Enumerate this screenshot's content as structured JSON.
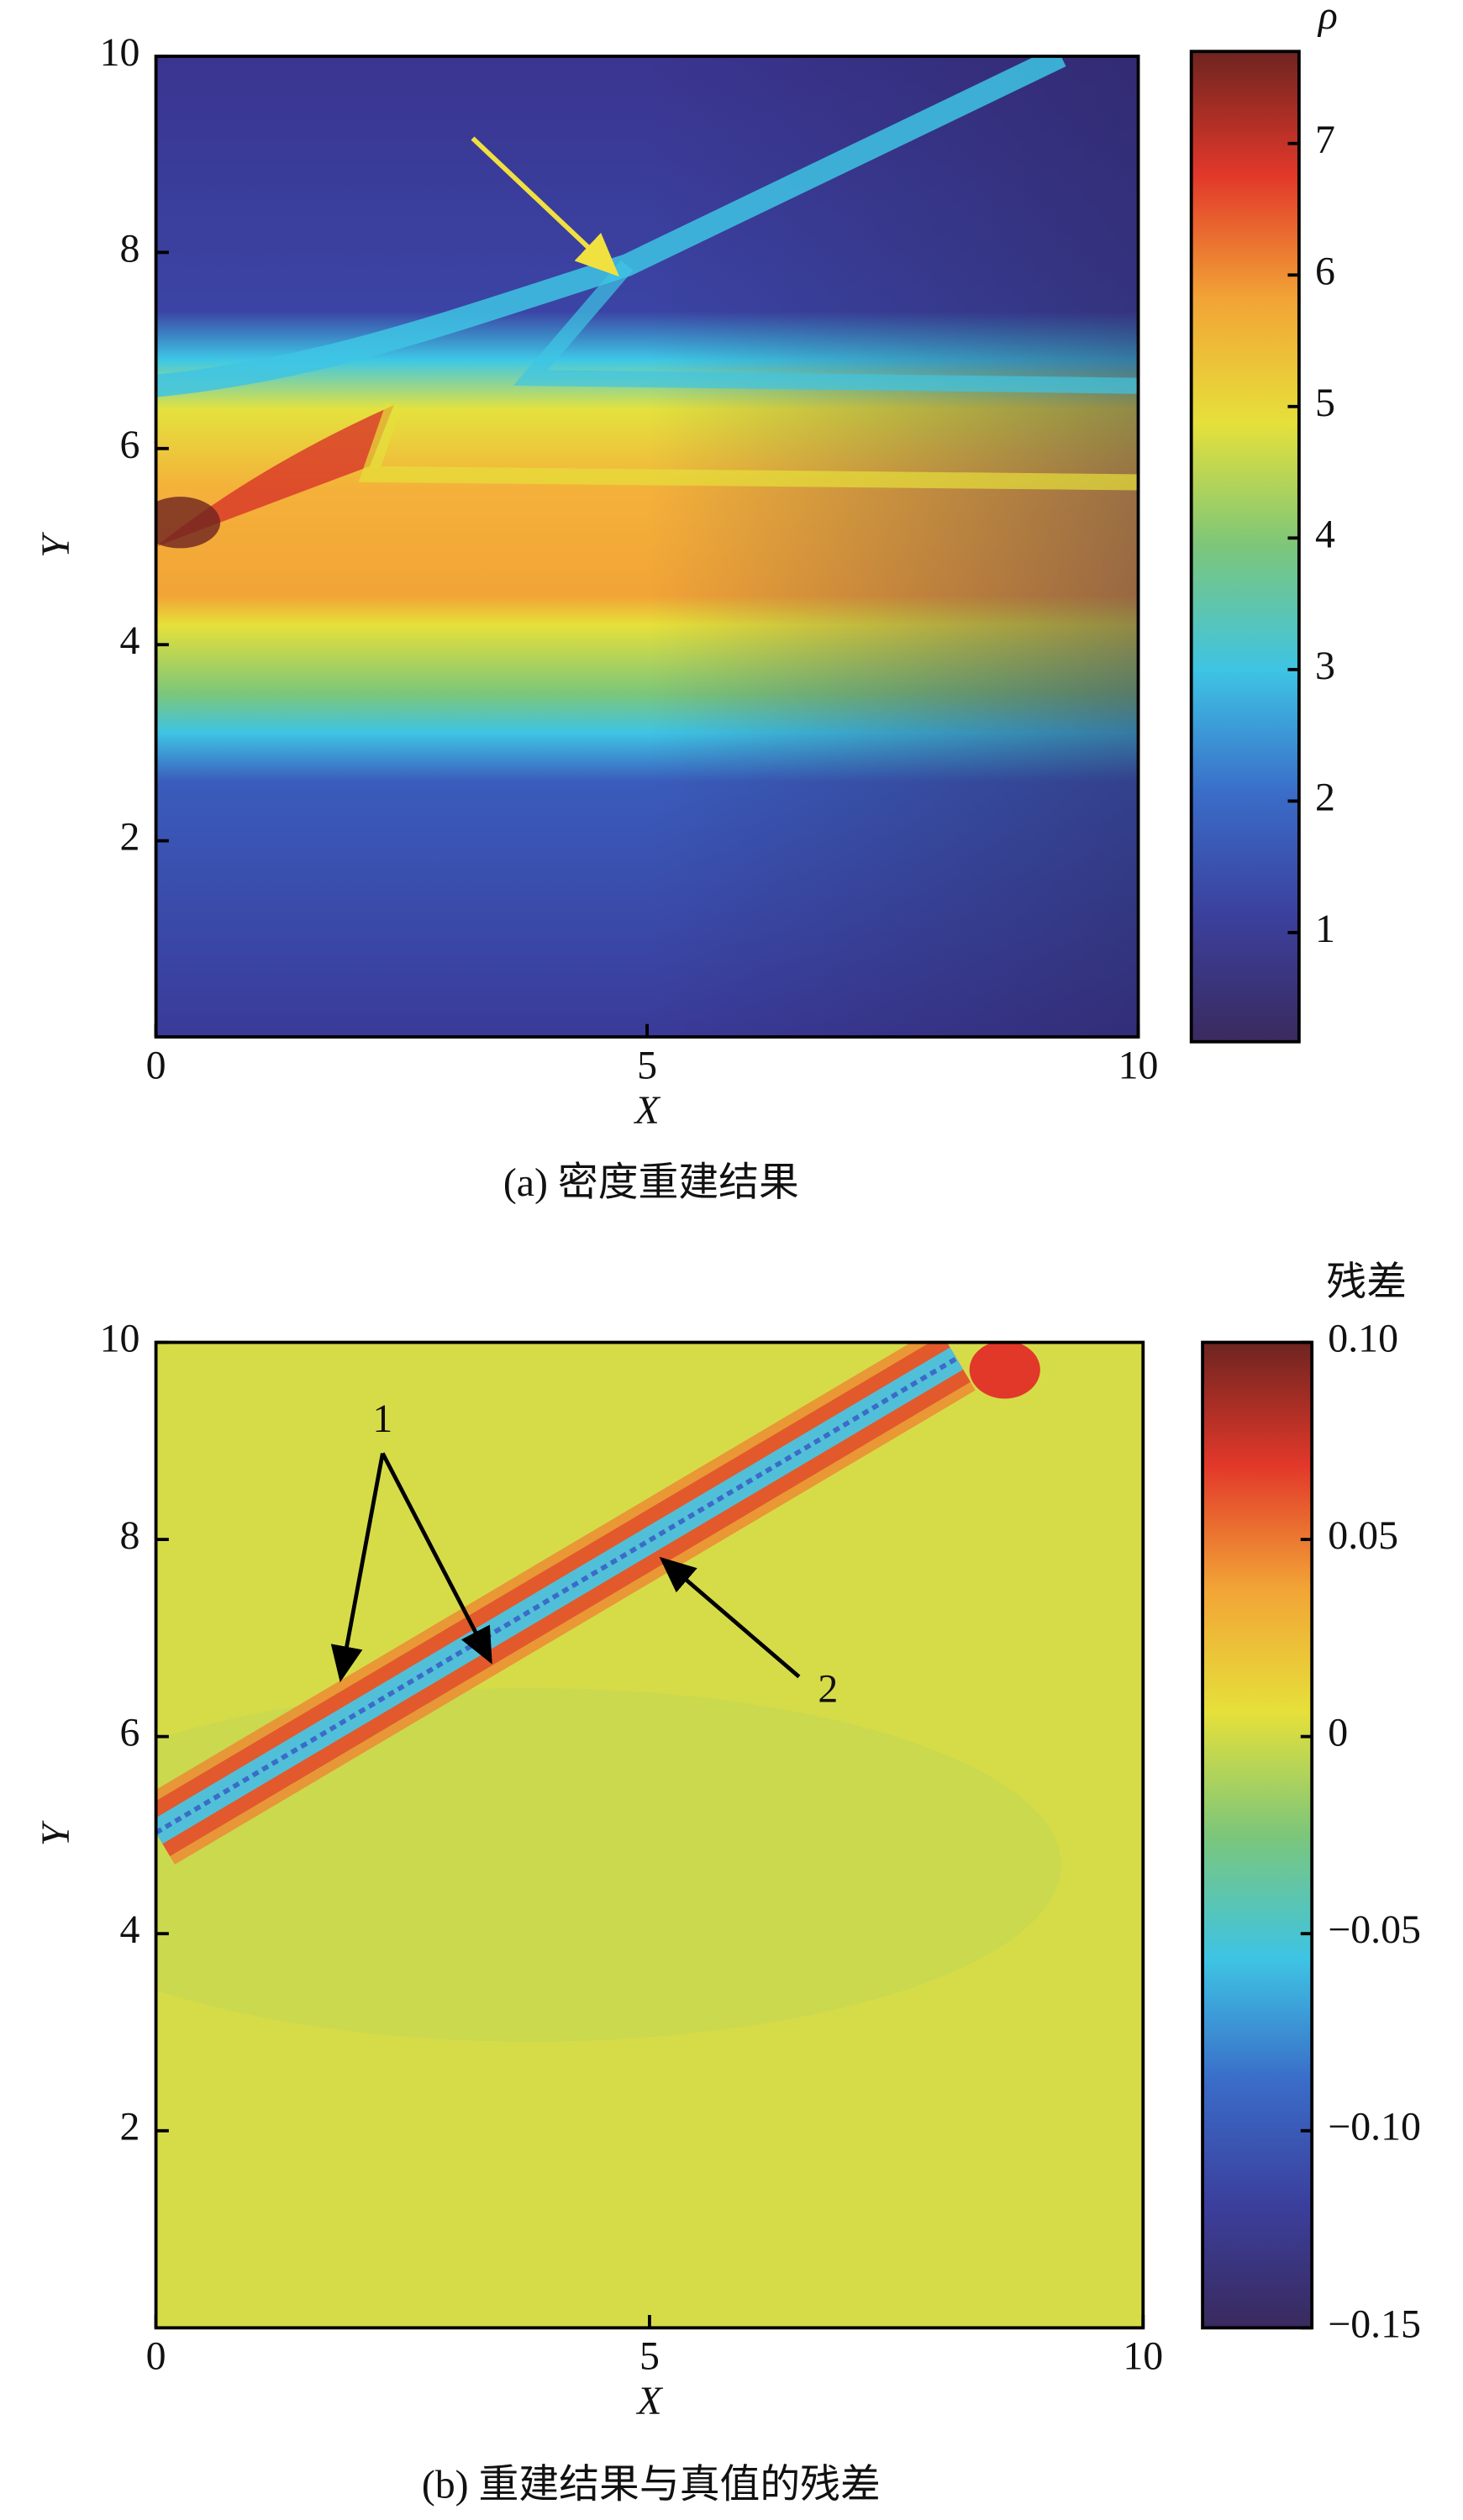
{
  "chart_data": [
    {
      "type": "heatmap",
      "xlabel": "X",
      "ylabel": "Y",
      "caption": "(a) 密度重建结果",
      "xlim": [
        0,
        10
      ],
      "ylim": [
        0,
        10
      ],
      "xticks": [
        0,
        5,
        10
      ],
      "yticks": [
        2,
        4,
        6,
        8,
        10
      ],
      "colorbar": {
        "label": "ρ",
        "clim": [
          0.17,
          7.7
        ],
        "ticks": [
          1,
          2,
          3,
          4,
          5,
          6,
          7
        ]
      },
      "colormap": [
        "#3a2a5e",
        "#3b3f9c",
        "#3a6cc8",
        "#3ec4e4",
        "#7cc67a",
        "#e6e03a",
        "#f2a436",
        "#e2382a",
        "#6e2420"
      ]
    },
    {
      "type": "heatmap",
      "xlabel": "X",
      "ylabel": "Y",
      "caption": "(b) 重建结果与真值的残差",
      "xlim": [
        0,
        10
      ],
      "ylim": [
        0,
        10
      ],
      "xticks": [
        0,
        5,
        10
      ],
      "yticks": [
        2,
        4,
        6,
        8,
        10
      ],
      "colorbar": {
        "label": "残差",
        "clim": [
          -0.15,
          0.1
        ],
        "ticks": [
          {
            "value": 0.1,
            "label": "0.10"
          },
          {
            "value": 0.05,
            "label": "0.05"
          },
          {
            "value": 0,
            "label": "0"
          },
          {
            "value": -0.05,
            "label": "−0.05"
          },
          {
            "value": -0.1,
            "label": "−0.10"
          },
          {
            "value": -0.15,
            "label": "−0.15"
          }
        ]
      },
      "colormap": [
        "#3a2a5e",
        "#3b3f9c",
        "#3a6cc8",
        "#3ec4e4",
        "#7cc67a",
        "#e6e03a",
        "#f2a436",
        "#e2382a",
        "#6e2420"
      ],
      "annotations": [
        "1",
        "2"
      ]
    }
  ]
}
